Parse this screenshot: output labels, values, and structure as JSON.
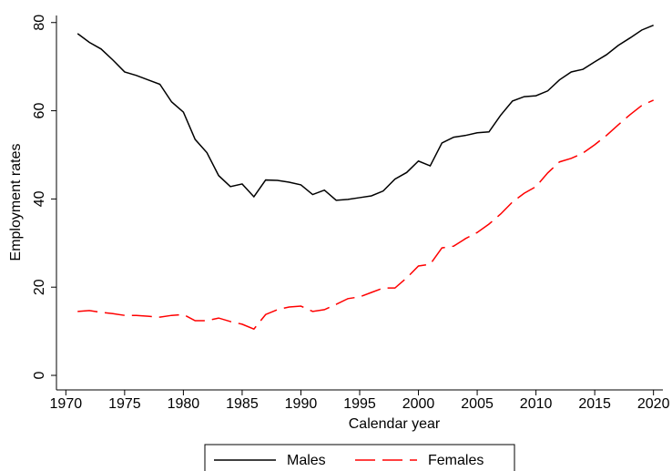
{
  "chart_data": {
    "type": "line",
    "x_label": "Calendar year",
    "y_label": "Employment rates",
    "x": [
      1971,
      1972,
      1973,
      1974,
      1975,
      1976,
      1977,
      1978,
      1979,
      1980,
      1981,
      1982,
      1983,
      1984,
      1985,
      1986,
      1987,
      1988,
      1989,
      1990,
      1991,
      1992,
      1993,
      1994,
      1995,
      1996,
      1997,
      1998,
      1999,
      2000,
      2001,
      2002,
      2003,
      2004,
      2005,
      2006,
      2007,
      2008,
      2009,
      2010,
      2011,
      2012,
      2013,
      2014,
      2015,
      2016,
      2017,
      2018,
      2019,
      2020
    ],
    "series": [
      {
        "name": "Males",
        "color": "#000000",
        "dash": "solid",
        "values": [
          77.5,
          75.5,
          74,
          71.5,
          68.8,
          68,
          67,
          66,
          62,
          59.7,
          53.5,
          50.5,
          45.3,
          42.8,
          43.4,
          40.5,
          44.3,
          44.2,
          43.8,
          43.2,
          41,
          42,
          39.7,
          39.9,
          40.3,
          40.7,
          41.8,
          44.5,
          46,
          48.6,
          47.5,
          52.7,
          54,
          54.4,
          55,
          55.2,
          59,
          62.2,
          63.2,
          63.4,
          64.5,
          67,
          68.8,
          69.4,
          71.1,
          72.7,
          74.8,
          76.5,
          78.3,
          79.4
        ]
      },
      {
        "name": "Females",
        "color": "#ff0000",
        "dash": "dashed",
        "values": [
          14.5,
          14.7,
          14.3,
          14,
          13.6,
          13.6,
          13.4,
          13.2,
          13.6,
          13.8,
          12.4,
          12.4,
          13,
          12.2,
          11.6,
          10.5,
          13.8,
          14.9,
          15.5,
          15.7,
          14.5,
          14.9,
          16.1,
          17.4,
          17.8,
          18.8,
          19.8,
          19.8,
          22.1,
          24.8,
          25.2,
          28.9,
          29.3,
          31,
          32.4,
          34.3,
          36.6,
          39.3,
          41.3,
          42.8,
          45.9,
          48.4,
          49.2,
          50.4,
          52.3,
          54.4,
          56.8,
          59.1,
          61.2,
          62.4
        ]
      }
    ],
    "xlim": [
      1969.2,
      2020.8
    ],
    "ylim": [
      -3.3,
      81.6
    ],
    "xticks": [
      1970,
      1975,
      1980,
      1985,
      1990,
      1995,
      2000,
      2005,
      2010,
      2015,
      2020
    ],
    "yticks": [
      0,
      20,
      40,
      60,
      80
    ],
    "grid": false,
    "legend": "bottom"
  }
}
